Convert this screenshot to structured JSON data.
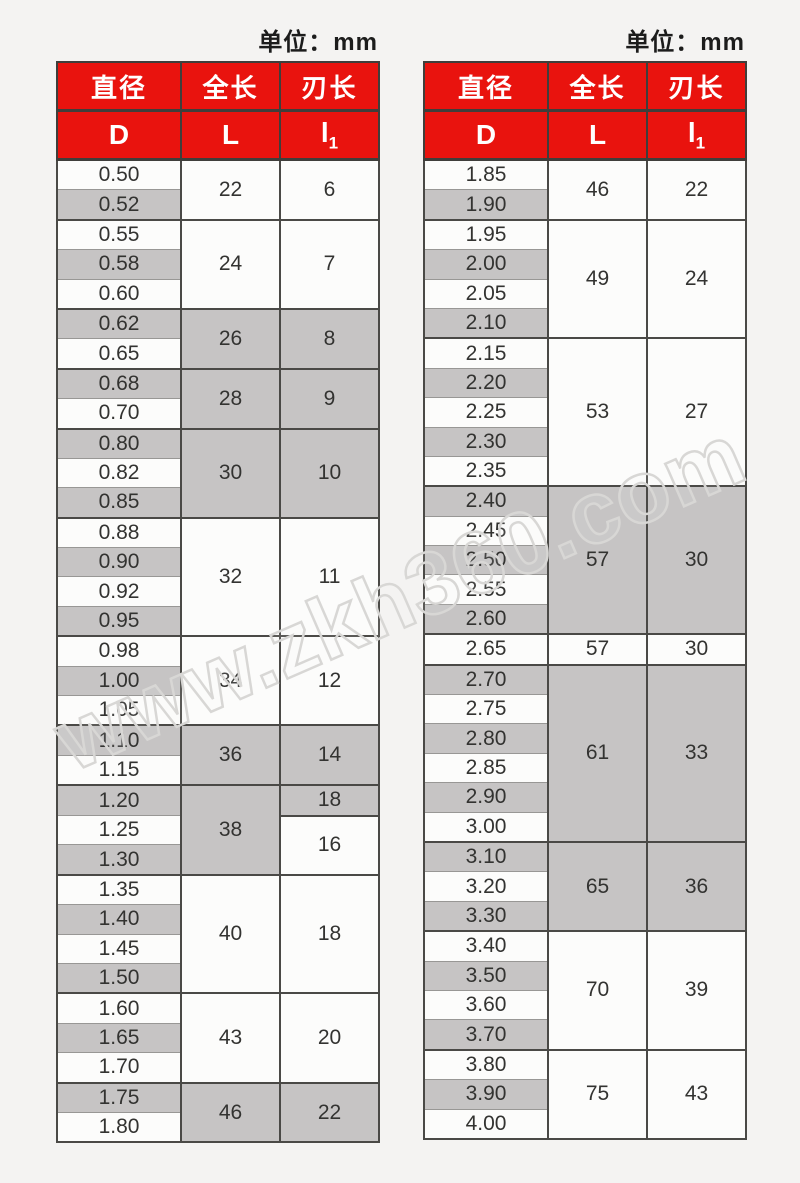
{
  "page": {
    "background": "#f4f3f2",
    "accent_red": "#e9130e",
    "gray_row": "#c6c4c4",
    "white_row": "#fcfcfb",
    "border_dark": "#4a4946",
    "border_light": "#989795",
    "text_color": "#333331"
  },
  "watermark": {
    "text": "www.zkh360.com"
  },
  "tables": [
    {
      "name": "spec-table-left",
      "unit_label": "单位：mm",
      "headers": [
        {
          "label": "直径",
          "key": "diameter"
        },
        {
          "label": "全长",
          "key": "overall-length"
        },
        {
          "label": "刃长",
          "key": "flute-length"
        }
      ],
      "subheaders": [
        {
          "label": "D"
        },
        {
          "label": "L"
        },
        {
          "label": "l",
          "sub": "1"
        }
      ],
      "groups": [
        {
          "d": [
            "0.50",
            "0.52"
          ],
          "L": "22",
          "l1": "6"
        },
        {
          "d": [
            "0.55",
            "0.58",
            "0.60"
          ],
          "L": "24",
          "l1": "7"
        },
        {
          "d": [
            "0.62",
            "0.65"
          ],
          "L": "26",
          "l1": "8"
        },
        {
          "d": [
            "0.68",
            "0.70"
          ],
          "L": "28",
          "l1": "9"
        },
        {
          "d": [
            "0.80",
            "0.82",
            "0.85"
          ],
          "L": "30",
          "l1": "10"
        },
        {
          "d": [
            "0.88",
            "0.90",
            "0.92",
            "0.95"
          ],
          "L": "32",
          "l1": "11"
        },
        {
          "d": [
            "0.98",
            "1.00",
            "1.05"
          ],
          "L": "34",
          "l1": "12"
        },
        {
          "d": [
            "1.10",
            "1.15"
          ],
          "L": "36",
          "l1": "14"
        },
        {
          "d": [
            "1.20",
            "1.25",
            "1.30"
          ],
          "L": "38",
          "l1_split": [
            {
              "value": "18",
              "rows": 1
            },
            {
              "value": "16",
              "rows": 2
            }
          ]
        },
        {
          "d": [
            "1.35",
            "1.40",
            "1.45",
            "1.50"
          ],
          "L": "40",
          "l1": "18"
        },
        {
          "d": [
            "1.60",
            "1.65",
            "1.70"
          ],
          "L": "43",
          "l1": "20"
        },
        {
          "d": [
            "1.75",
            "1.80"
          ],
          "L": "46",
          "l1": "22"
        }
      ]
    },
    {
      "name": "spec-table-right",
      "unit_label": "单位：mm",
      "headers": [
        {
          "label": "直径",
          "key": "diameter"
        },
        {
          "label": "全长",
          "key": "overall-length"
        },
        {
          "label": "刃长",
          "key": "flute-length"
        }
      ],
      "subheaders": [
        {
          "label": "D"
        },
        {
          "label": "L"
        },
        {
          "label": "l",
          "sub": "1"
        }
      ],
      "groups": [
        {
          "d": [
            "1.85",
            "1.90"
          ],
          "L": "46",
          "l1": "22"
        },
        {
          "d": [
            "1.95",
            "2.00",
            "2.05",
            "2.10"
          ],
          "L": "49",
          "l1": "24"
        },
        {
          "d": [
            "2.15",
            "2.20",
            "2.25",
            "2.30",
            "2.35"
          ],
          "L": "53",
          "l1": "27"
        },
        {
          "d": [
            "2.40",
            "2.45",
            "2.50",
            "2.55",
            "2.60"
          ],
          "L": "57",
          "l1": "30"
        },
        {
          "d": [
            "2.65"
          ],
          "L": "57",
          "l1": "30"
        },
        {
          "d": [
            "2.70",
            "2.75",
            "2.80",
            "2.85",
            "2.90",
            "3.00"
          ],
          "L": "61",
          "l1": "33"
        },
        {
          "d": [
            "3.10",
            "3.20",
            "3.30"
          ],
          "L": "65",
          "l1": "36"
        },
        {
          "d": [
            "3.40",
            "3.50",
            "3.60",
            "3.70"
          ],
          "L": "70",
          "l1": "39"
        },
        {
          "d": [
            "3.80",
            "3.90",
            "4.00"
          ],
          "L": "75",
          "l1": "43"
        }
      ]
    }
  ]
}
